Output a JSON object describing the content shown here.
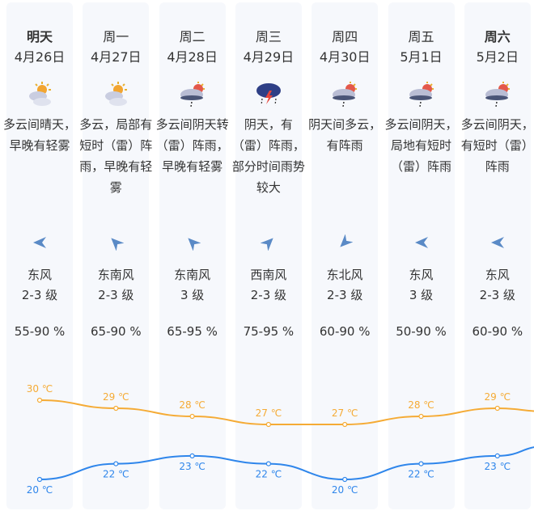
{
  "days": [
    {
      "day": "明天",
      "date": "4月26日",
      "weather_icon": "partly-cloudy-icon",
      "desc": "多云间晴天，早晚有轻雾",
      "wind_dir": "东风",
      "wind_level": "2-3 级",
      "humidity": "55-90 %",
      "high": "30 ℃",
      "low": "20 ℃"
    },
    {
      "day": "周一",
      "date": "4月27日",
      "weather_icon": "partly-cloudy-icon",
      "desc": "多云，局部有短时（雷）阵雨，早晚有轻雾",
      "wind_dir": "东南风",
      "wind_level": "2-3 级",
      "humidity": "65-90 %",
      "high": "29 ℃",
      "low": "22 ℃"
    },
    {
      "day": "周二",
      "date": "4月28日",
      "weather_icon": "shower-icon",
      "desc": "多云间阴天转（雷）阵雨，早晚有轻雾",
      "wind_dir": "东南风",
      "wind_level": "3 级",
      "humidity": "65-95 %",
      "high": "28 ℃",
      "low": "23 ℃"
    },
    {
      "day": "周三",
      "date": "4月29日",
      "weather_icon": "thunderstorm-icon",
      "desc": "阴天，有（雷）阵雨，部分时间雨势较大",
      "wind_dir": "西南风",
      "wind_level": "2-3 级",
      "humidity": "75-95 %",
      "high": "27 ℃",
      "low": "22 ℃"
    },
    {
      "day": "周四",
      "date": "4月30日",
      "weather_icon": "shower-icon",
      "desc": "阴天间多云，有阵雨",
      "wind_dir": "东北风",
      "wind_level": "2-3 级",
      "humidity": "60-90 %",
      "high": "27 ℃",
      "low": "20 ℃"
    },
    {
      "day": "周五",
      "date": "5月1日",
      "weather_icon": "shower-icon",
      "desc": "多云间阴天，局地有短时（雷）阵雨",
      "wind_dir": "东风",
      "wind_level": "3 级",
      "humidity": "50-90 %",
      "high": "28 ℃",
      "low": "22 ℃"
    },
    {
      "day": "周六",
      "date": "5月2日",
      "weather_icon": "shower-icon",
      "desc": "多云间阴天，有短时（雷）阵雨",
      "wind_dir": "东风",
      "wind_level": "2-3 级",
      "humidity": "60-90 %",
      "high": "29 ℃",
      "low": "23 ℃"
    }
  ],
  "highs": [
    30,
    29,
    28,
    27,
    27,
    28,
    29
  ],
  "lows": [
    20,
    22,
    23,
    22,
    20,
    22,
    23
  ],
  "colors": {
    "high": "#f5ab35",
    "low": "#2f86eb",
    "card": "#f6f8fc"
  }
}
